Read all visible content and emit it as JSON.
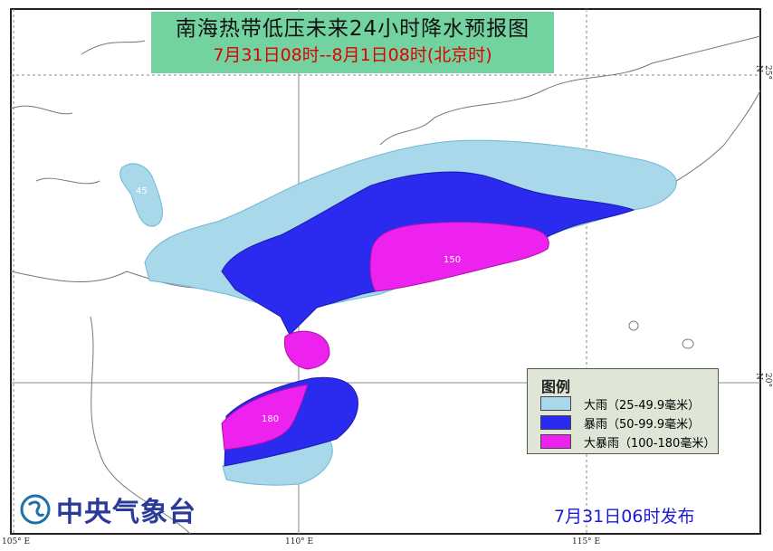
{
  "title": {
    "main": "南海热带低压未来24小时降水预报图",
    "period": "7月31日08时--8月1日08时(北京时)"
  },
  "legend": {
    "title": "图例",
    "items": [
      {
        "label": "大雨（25-49.9毫米）",
        "color": "#a8d8ea"
      },
      {
        "label": "暴雨（50-99.9毫米）",
        "color": "#2b2bef"
      },
      {
        "label": "大暴雨（100-180毫米）",
        "color": "#ee22ee"
      }
    ]
  },
  "contour_labels": {
    "light": "45",
    "heavy": "150",
    "hainan": "180"
  },
  "axes": {
    "lon_ticks": [
      "105° E",
      "110° E",
      "115° E"
    ],
    "lat_ticks": [
      "25° N",
      "20° N"
    ]
  },
  "agency": {
    "logo_text": "中央气象台"
  },
  "issued": "7月31日06时发布"
}
